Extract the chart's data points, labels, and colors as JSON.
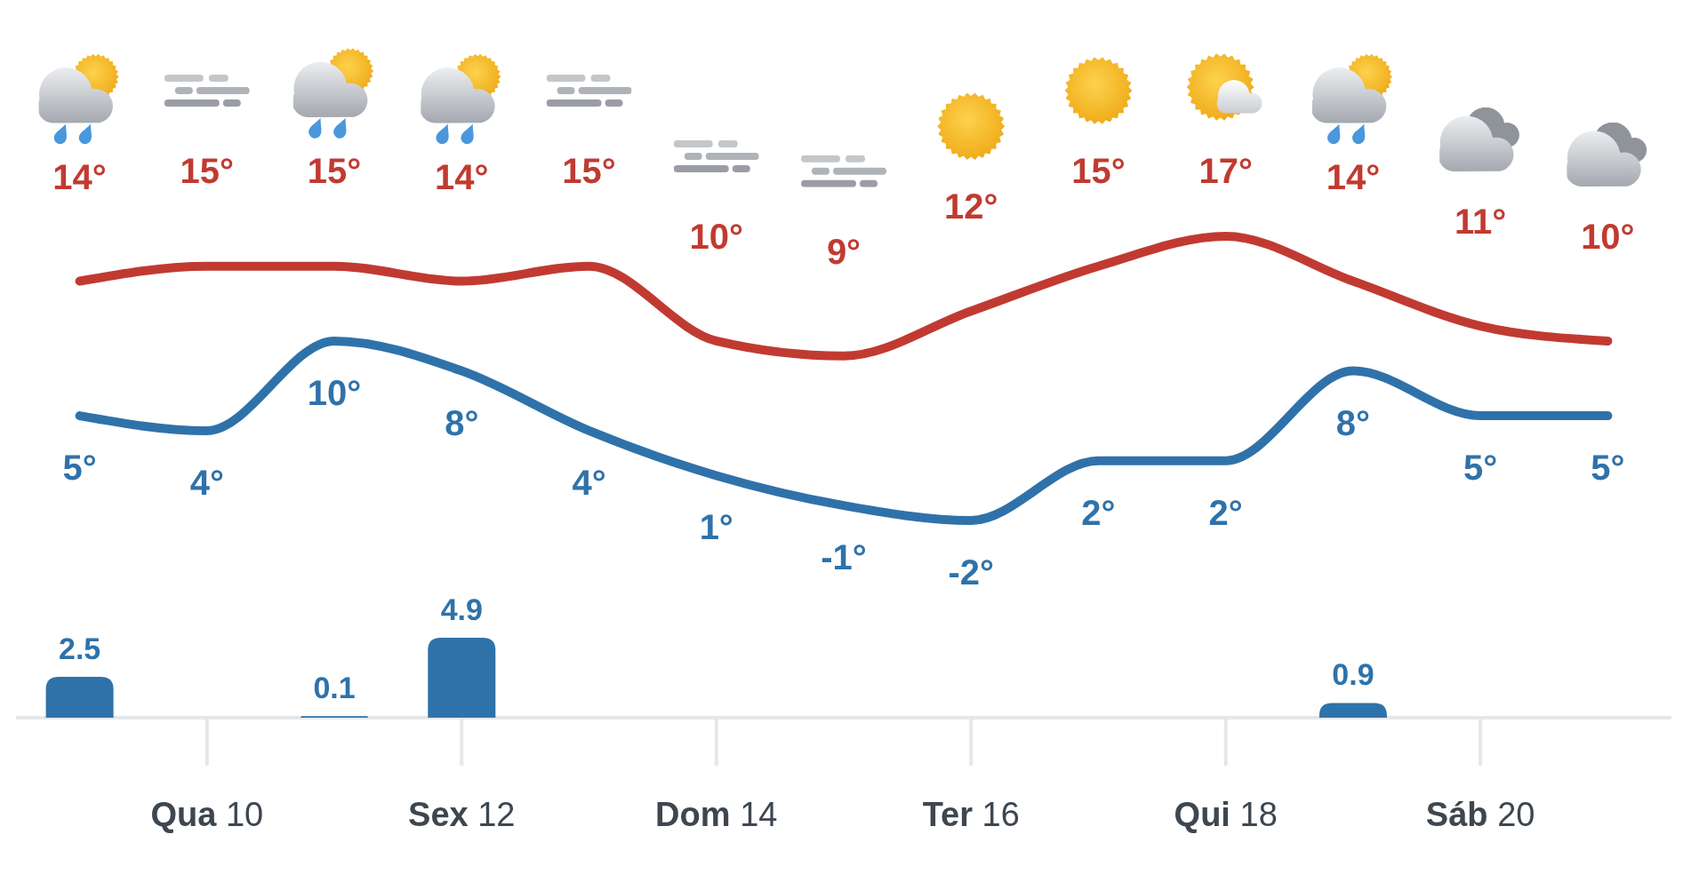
{
  "chart_data": [
    {
      "type": "line",
      "categories": [
        null,
        null,
        null,
        null,
        null,
        null,
        null,
        null,
        null,
        null,
        null,
        null,
        null
      ],
      "series": [
        {
          "color": "#c13a31",
          "values": [
            14,
            15,
            15,
            14,
            15,
            10,
            9,
            12,
            15,
            17,
            14,
            11,
            10
          ],
          "value_labels": [
            "14°",
            "15°",
            "15°",
            "14°",
            "15°",
            "10°",
            "9°",
            "12°",
            "15°",
            "17°",
            "14°",
            "11°",
            "10°"
          ]
        },
        {
          "color": "#2f72aa",
          "values": [
            5,
            4,
            10,
            8,
            4,
            1,
            -1,
            -2,
            2,
            2,
            8,
            5,
            5
          ],
          "value_labels": [
            "5°",
            "4°",
            "10°",
            "8°",
            "4°",
            "1°",
            "-1°",
            "-2°",
            "2°",
            "2°",
            "8°",
            "5°",
            "5°"
          ]
        }
      ],
      "tick_labels": false
    },
    {
      "type": "bar",
      "categories": [
        null,
        "Qua 10",
        null,
        "Sex 12",
        null,
        "Dom 14",
        null,
        "Ter 16",
        null,
        "Qui 18",
        null,
        "Sáb 20",
        null
      ],
      "values": [
        2.5,
        null,
        0.1,
        4.9,
        null,
        null,
        null,
        null,
        null,
        null,
        0.9,
        null,
        null
      ],
      "color": "#2e72aa",
      "value_labels": [
        "2.5",
        null,
        "0.1",
        "4.9",
        null,
        null,
        null,
        null,
        null,
        null,
        "0.9",
        null,
        null
      ],
      "tick_labels": "x"
    }
  ]
}
